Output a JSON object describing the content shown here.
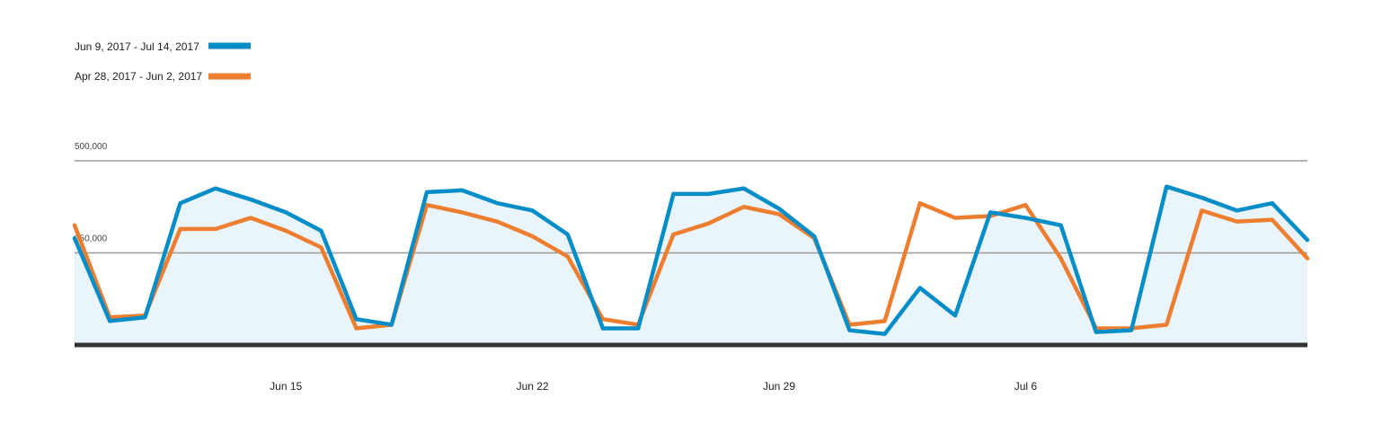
{
  "chart_data": {
    "type": "line",
    "x_start": "2017-06-09",
    "x_end": "2017-07-14",
    "x_tick_labels": [
      "Jun 15",
      "Jun 22",
      "Jun 29",
      "Jul 6"
    ],
    "x_tick_dates": [
      "2017-06-15",
      "2017-06-22",
      "2017-06-29",
      "2017-07-06"
    ],
    "y_tick_labels": [
      "500,000",
      "250,000"
    ],
    "y_tick_values": [
      500000,
      250000
    ],
    "ylim": [
      0,
      500000
    ],
    "legend_position": "top-left",
    "grid": true,
    "colors": {
      "series1": "#058DC7",
      "series2": "#ED7E30",
      "area_fill": "#EAF4FB",
      "baseline": "#333333",
      "gridline": "#999999"
    },
    "series": [
      {
        "name": "Jun 9, 2017 - Jul 14, 2017",
        "x": [
          "2017-06-09",
          "2017-06-10",
          "2017-06-11",
          "2017-06-12",
          "2017-06-13",
          "2017-06-14",
          "2017-06-15",
          "2017-06-16",
          "2017-06-17",
          "2017-06-18",
          "2017-06-19",
          "2017-06-20",
          "2017-06-21",
          "2017-06-22",
          "2017-06-23",
          "2017-06-24",
          "2017-06-25",
          "2017-06-26",
          "2017-06-27",
          "2017-06-28",
          "2017-06-29",
          "2017-06-30",
          "2017-07-01",
          "2017-07-02",
          "2017-07-03",
          "2017-07-04",
          "2017-07-05",
          "2017-07-06",
          "2017-07-07",
          "2017-07-08",
          "2017-07-09",
          "2017-07-10",
          "2017-07-11",
          "2017-07-12",
          "2017-07-13",
          "2017-07-14"
        ],
        "values": [
          290000,
          65000,
          75000,
          385000,
          425000,
          395000,
          360000,
          310000,
          70000,
          55000,
          415000,
          420000,
          385000,
          365000,
          300000,
          45000,
          45000,
          410000,
          410000,
          425000,
          370000,
          295000,
          40000,
          30000,
          155000,
          80000,
          360000,
          345000,
          325000,
          35000,
          40000,
          430000,
          400000,
          365000,
          385000,
          285000
        ]
      },
      {
        "name": "Apr 28, 2017 - Jun 2, 2017",
        "x": [
          "2017-06-09",
          "2017-06-10",
          "2017-06-11",
          "2017-06-12",
          "2017-06-13",
          "2017-06-14",
          "2017-06-15",
          "2017-06-16",
          "2017-06-17",
          "2017-06-18",
          "2017-06-19",
          "2017-06-20",
          "2017-06-21",
          "2017-06-22",
          "2017-06-23",
          "2017-06-24",
          "2017-06-25",
          "2017-06-26",
          "2017-06-27",
          "2017-06-28",
          "2017-06-29",
          "2017-06-30",
          "2017-07-01",
          "2017-07-02",
          "2017-07-03",
          "2017-07-04",
          "2017-07-05",
          "2017-07-06",
          "2017-07-07",
          "2017-07-08",
          "2017-07-09",
          "2017-07-10",
          "2017-07-11",
          "2017-07-12",
          "2017-07-13",
          "2017-07-14"
        ],
        "values": [
          325000,
          75000,
          80000,
          315000,
          315000,
          345000,
          310000,
          265000,
          45000,
          55000,
          380000,
          360000,
          335000,
          295000,
          240000,
          70000,
          55000,
          300000,
          330000,
          375000,
          355000,
          290000,
          55000,
          65000,
          385000,
          345000,
          350000,
          380000,
          235000,
          45000,
          45000,
          55000,
          365000,
          335000,
          340000,
          235000
        ]
      }
    ]
  }
}
